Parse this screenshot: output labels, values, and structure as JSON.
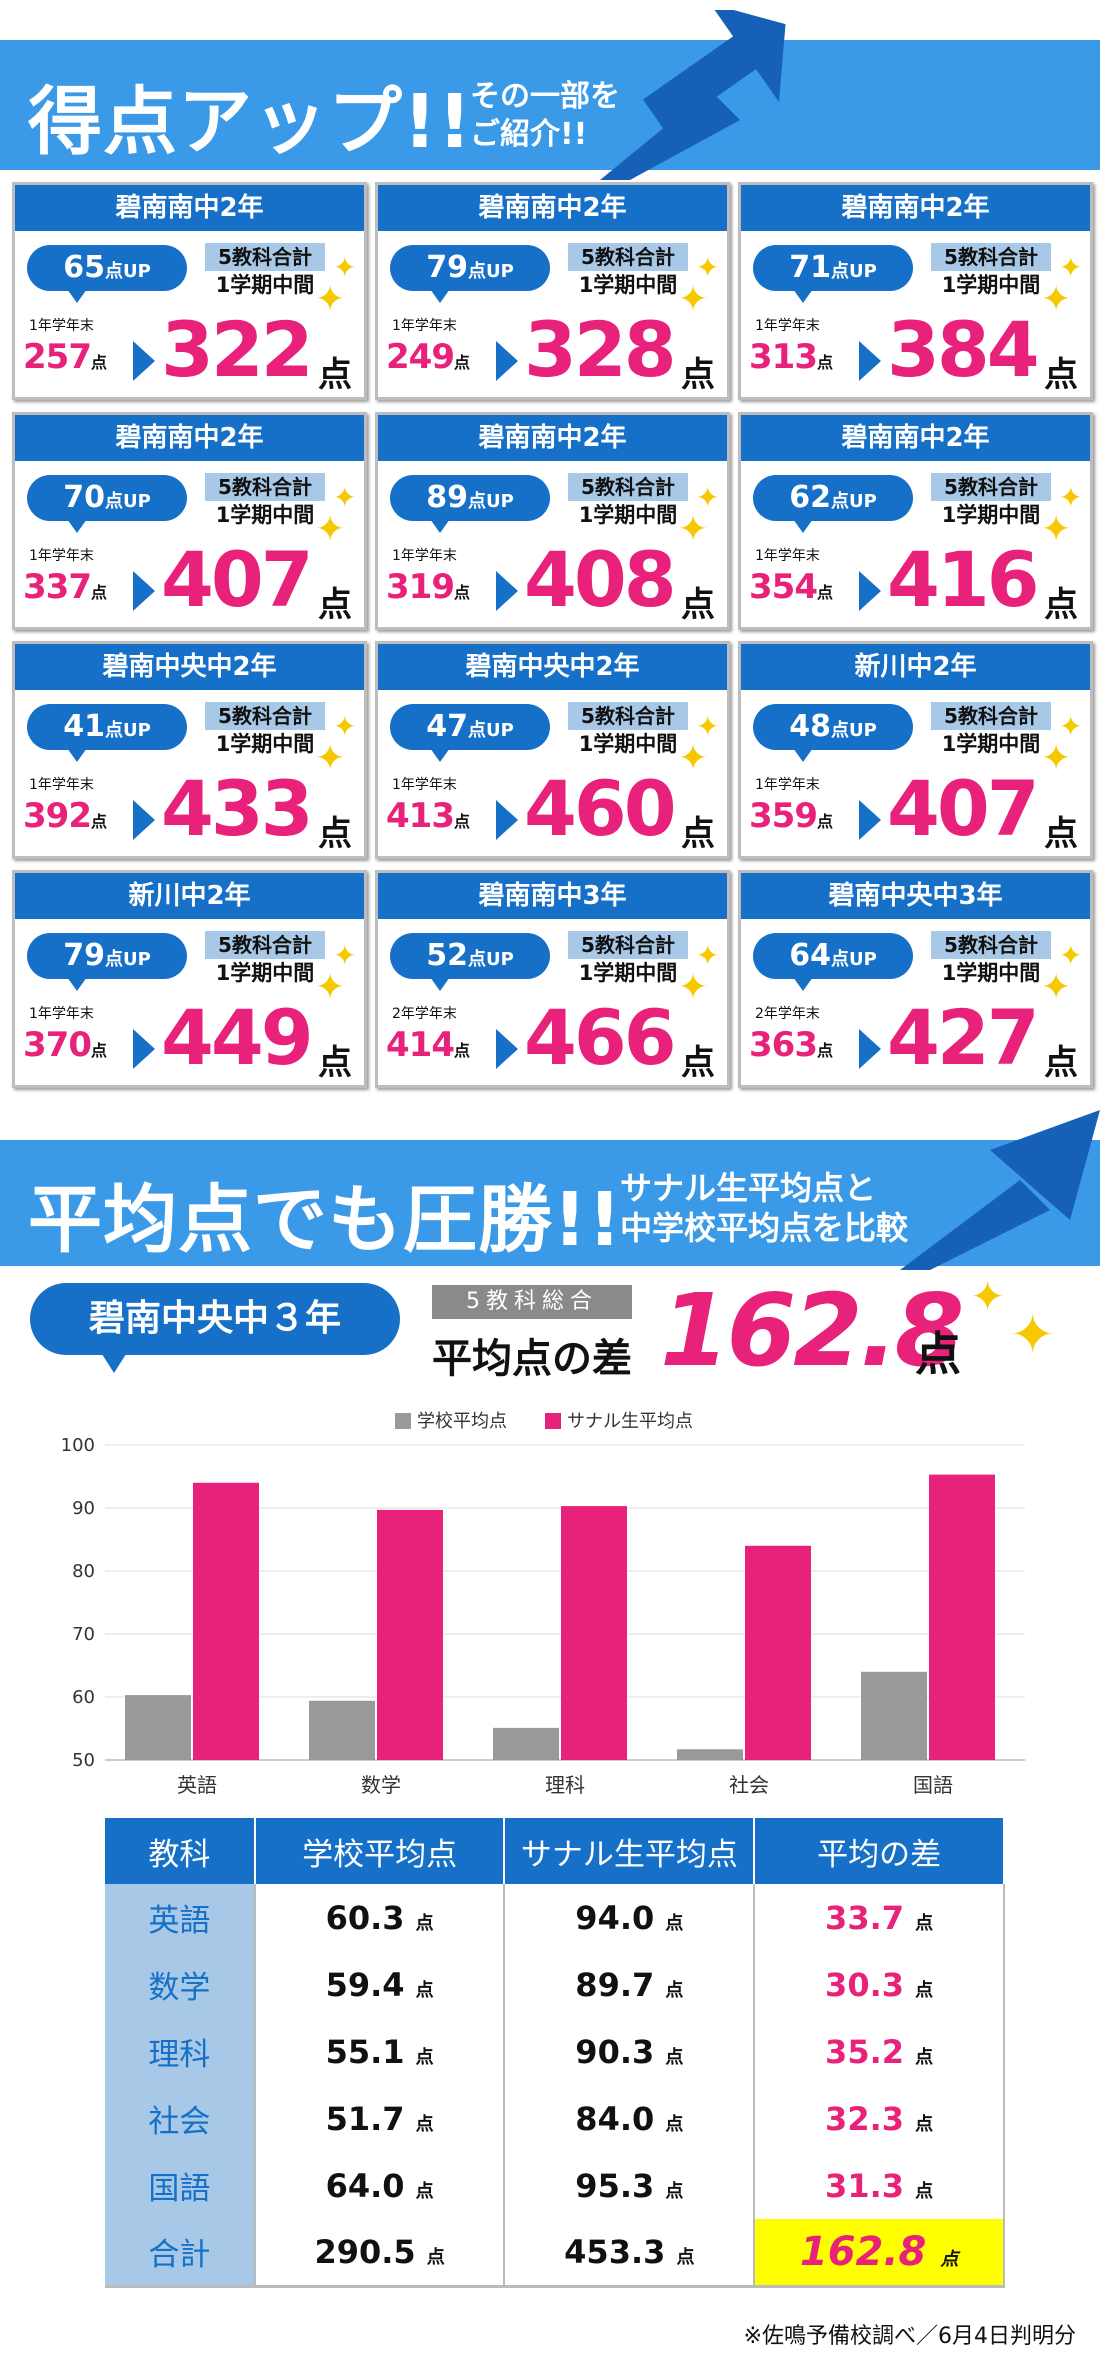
{
  "section1": {
    "title": "得点アップ!!",
    "subtitle": [
      "その一部を",
      "ご紹介!!"
    ]
  },
  "cards": [
    {
      "school": "碧南南中2年",
      "up": "65",
      "up_unit": "点UP",
      "tag1": "5教科合計",
      "tag2": "1学期中間",
      "prev_label": "1年学年末",
      "prev": "257",
      "score": "322"
    },
    {
      "school": "碧南南中2年",
      "up": "79",
      "up_unit": "点UP",
      "tag1": "5教科合計",
      "tag2": "1学期中間",
      "prev_label": "1年学年末",
      "prev": "249",
      "score": "328"
    },
    {
      "school": "碧南南中2年",
      "up": "71",
      "up_unit": "点UP",
      "tag1": "5教科合計",
      "tag2": "1学期中間",
      "prev_label": "1年学年末",
      "prev": "313",
      "score": "384"
    },
    {
      "school": "碧南南中2年",
      "up": "70",
      "up_unit": "点UP",
      "tag1": "5教科合計",
      "tag2": "1学期中間",
      "prev_label": "1年学年末",
      "prev": "337",
      "score": "407"
    },
    {
      "school": "碧南南中2年",
      "up": "89",
      "up_unit": "点UP",
      "tag1": "5教科合計",
      "tag2": "1学期中間",
      "prev_label": "1年学年末",
      "prev": "319",
      "score": "408"
    },
    {
      "school": "碧南南中2年",
      "up": "62",
      "up_unit": "点UP",
      "tag1": "5教科合計",
      "tag2": "1学期中間",
      "prev_label": "1年学年末",
      "prev": "354",
      "score": "416"
    },
    {
      "school": "碧南中央中2年",
      "up": "41",
      "up_unit": "点UP",
      "tag1": "5教科合計",
      "tag2": "1学期中間",
      "prev_label": "1年学年末",
      "prev": "392",
      "score": "433"
    },
    {
      "school": "碧南中央中2年",
      "up": "47",
      "up_unit": "点UP",
      "tag1": "5教科合計",
      "tag2": "1学期中間",
      "prev_label": "1年学年末",
      "prev": "413",
      "score": "460"
    },
    {
      "school": "新川中2年",
      "up": "48",
      "up_unit": "点UP",
      "tag1": "5教科合計",
      "tag2": "1学期中間",
      "prev_label": "1年学年末",
      "prev": "359",
      "score": "407"
    },
    {
      "school": "新川中2年",
      "up": "79",
      "up_unit": "点UP",
      "tag1": "5教科合計",
      "tag2": "1学期中間",
      "prev_label": "1年学年末",
      "prev": "370",
      "score": "449"
    },
    {
      "school": "碧南南中3年",
      "up": "52",
      "up_unit": "点UP",
      "tag1": "5教科合計",
      "tag2": "1学期中間",
      "prev_label": "2年学年末",
      "prev": "414",
      "score": "466"
    },
    {
      "school": "碧南中央中3年",
      "up": "64",
      "up_unit": "点UP",
      "tag1": "5教科合計",
      "tag2": "1学期中間",
      "prev_label": "2年学年末",
      "prev": "363",
      "score": "427"
    }
  ],
  "point_unit": "点",
  "section2": {
    "title": "平均点でも圧勝!!",
    "subtitle": [
      "サナル生平均点と",
      "中学校平均点を比較"
    ]
  },
  "summary": {
    "school": "碧南中央中３年",
    "tag": "5教科総合",
    "label": "平均点の差",
    "value": "162.8",
    "unit": "点"
  },
  "colors": {
    "accent": "#e8227a",
    "primary": "#1670c8",
    "banner": "#3a9ae8",
    "school_avg": "#999999",
    "highlight": "#ffff00"
  },
  "chart_data": {
    "type": "bar",
    "categories": [
      "英語",
      "数学",
      "理科",
      "社会",
      "国語"
    ],
    "series": [
      {
        "name": "学校平均点",
        "values": [
          60.3,
          59.4,
          55.1,
          51.7,
          64.0
        ],
        "color": "#999999"
      },
      {
        "name": "サナル生平均点",
        "values": [
          94.0,
          89.7,
          90.3,
          84.0,
          95.3
        ],
        "color": "#e8227a"
      }
    ],
    "yticks": [
      50,
      60,
      70,
      80,
      90,
      100
    ],
    "ylim": [
      50,
      100
    ],
    "grid": true,
    "legend": "top-center"
  },
  "table": {
    "headers": [
      "教科",
      "学校平均点",
      "サナル生平均点",
      "平均の差"
    ],
    "rows": [
      {
        "subject": "英語",
        "school": "60.3",
        "sanaru": "94.0",
        "diff": "33.7"
      },
      {
        "subject": "数学",
        "school": "59.4",
        "sanaru": "89.7",
        "diff": "30.3"
      },
      {
        "subject": "理科",
        "school": "55.1",
        "sanaru": "90.3",
        "diff": "35.2"
      },
      {
        "subject": "社会",
        "school": "51.7",
        "sanaru": "84.0",
        "diff": "32.3"
      },
      {
        "subject": "国語",
        "school": "64.0",
        "sanaru": "95.3",
        "diff": "31.3"
      },
      {
        "subject": "合計",
        "school": "290.5",
        "sanaru": "453.3",
        "diff": "162.8"
      }
    ]
  },
  "footnote": "※佐鳴予備校調べ／6月4日判明分"
}
